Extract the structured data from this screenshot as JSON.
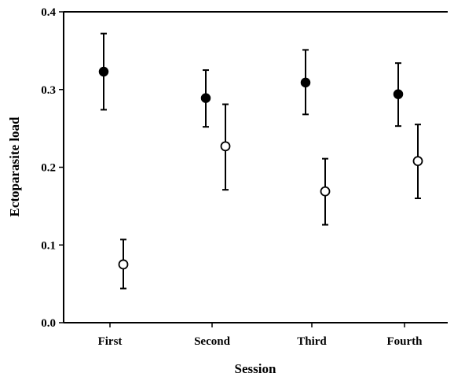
{
  "chart_data": {
    "type": "scatter",
    "title": "",
    "xlabel": "Session",
    "ylabel": "Ectoparasite load",
    "categories": [
      "First",
      "Second",
      "Third",
      "Fourth"
    ],
    "ylim": [
      0.0,
      0.4
    ],
    "yticks": [
      "0.0",
      "0.1",
      "0.2",
      "0.3",
      "0.4"
    ],
    "grid": false,
    "legend": "none",
    "series": [
      {
        "marker": "filled-circle",
        "values": [
          0.323,
          0.289,
          0.309,
          0.294
        ],
        "err_low": [
          0.274,
          0.252,
          0.268,
          0.253
        ],
        "err_high": [
          0.372,
          0.325,
          0.351,
          0.334
        ]
      },
      {
        "marker": "open-circle",
        "values": [
          0.075,
          0.227,
          0.169,
          0.208
        ],
        "err_low": [
          0.044,
          0.171,
          0.126,
          0.16
        ],
        "err_high": [
          0.107,
          0.281,
          0.211,
          0.255
        ]
      }
    ]
  },
  "colors": {
    "axis": "#000000",
    "filled_marker": "#000000",
    "open_marker_fill": "#ffffff"
  }
}
